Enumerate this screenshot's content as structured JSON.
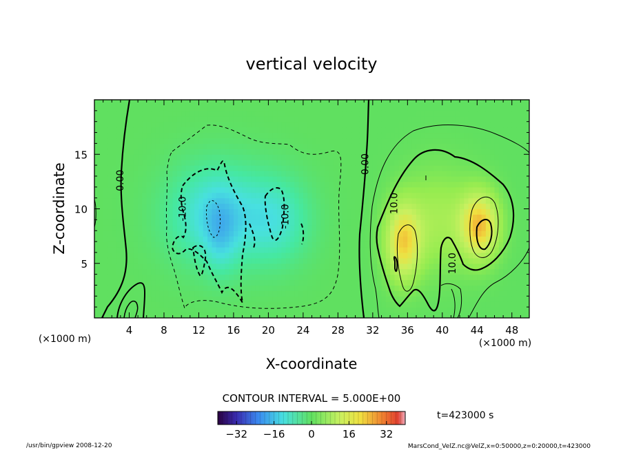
{
  "chart_data": {
    "type": "heatmap",
    "title": "vertical velocity",
    "xlabel": "X-coordinate",
    "ylabel": "Z-coordinate",
    "x_unit_left": "(×1000 m)",
    "x_unit_right": "(×1000 m)",
    "xlim": [
      0,
      50
    ],
    "ylim": [
      0,
      20
    ],
    "x_ticks": [
      4,
      8,
      12,
      16,
      20,
      24,
      28,
      32,
      36,
      40,
      44,
      48
    ],
    "x_tick_labels": [
      "4",
      "8",
      "12",
      "16",
      "20",
      "24",
      "28",
      "32",
      "36",
      "40",
      "44",
      "48"
    ],
    "y_ticks": [
      5,
      10,
      15
    ],
    "y_tick_labels": [
      "5",
      "10",
      "15"
    ],
    "contour_interval_text": "CONTOUR INTERVAL = 5.000E+00",
    "contour_labels": [
      {
        "text": "0.00",
        "x": 3.0,
        "z": 12.6
      },
      {
        "text": "-10.0",
        "x": 10.2,
        "z": 10.0
      },
      {
        "text": "-10.0",
        "x": 22.0,
        "z": 9.3
      },
      {
        "text": "0.00",
        "x": 31.2,
        "z": 14.1
      },
      {
        "text": "10.0",
        "x": 34.5,
        "z": 10.5
      },
      {
        "text": "10.0",
        "x": 41.2,
        "z": 5.0
      }
    ],
    "blobs": [
      {
        "x": 14,
        "z": 9.5,
        "sx": 5.5,
        "sz": 4.5,
        "amp": -13
      },
      {
        "x": 21,
        "z": 9,
        "sx": 4,
        "sz": 4,
        "amp": -9
      },
      {
        "x": 14.5,
        "z": 7.5,
        "sx": 1.8,
        "sz": 3.5,
        "amp": -6
      },
      {
        "x": 35.5,
        "z": 7.0,
        "sx": 2.0,
        "sz": 3.5,
        "amp": 18
      },
      {
        "x": 44.3,
        "z": 8.5,
        "sx": 2.2,
        "sz": 3.0,
        "amp": 20
      },
      {
        "x": 39.5,
        "z": 9.0,
        "sx": 4.0,
        "sz": 4.5,
        "amp": 7
      }
    ],
    "colorbar": {
      "min": -40,
      "max": 40,
      "ticks": [
        -32,
        -16,
        0,
        16,
        32
      ],
      "tick_labels": [
        "−32",
        "−16",
        "0",
        "16",
        "32"
      ]
    }
  },
  "time_label": "t=423000 s",
  "footer_left": "/usr/bin/gpview  2008-12-20",
  "footer_right": "MarsCond_VelZ.nc@VelZ,x=0:50000,z=0:20000,t=423000",
  "colors": {
    "plot_border": "#000000",
    "negative_contour": "dashed",
    "positive_contour": "solid"
  }
}
